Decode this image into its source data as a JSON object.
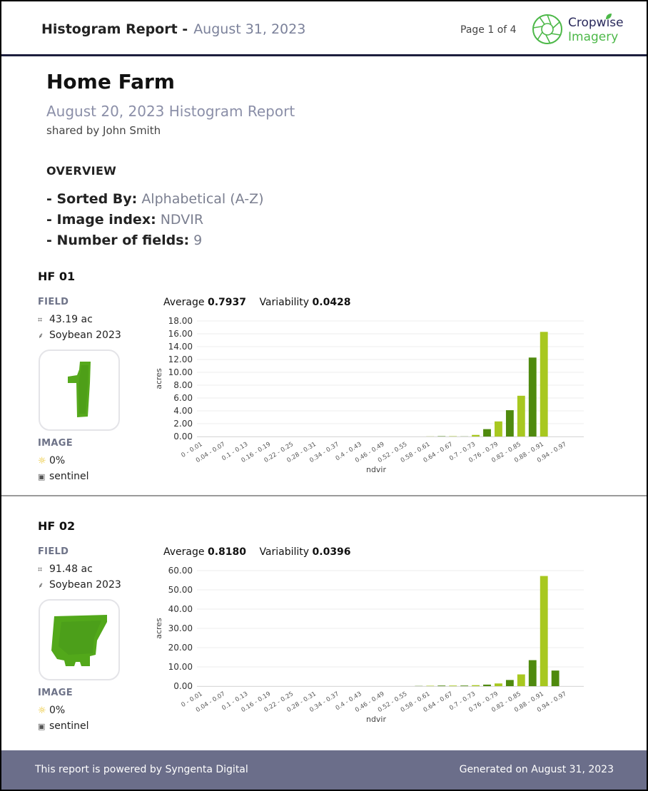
{
  "header": {
    "title": "Histogram Report -",
    "date": "August 31, 2023",
    "page": "Page 1 of 4",
    "logo_line1": "Cropwise",
    "logo_line2": "Imagery"
  },
  "farm": {
    "name": "Home Farm",
    "subtitle": "August 20, 2023 Histogram Report",
    "shared_by": "shared by John Smith"
  },
  "overview": {
    "heading": "OVERVIEW",
    "items": [
      {
        "key": "- Sorted By:",
        "value": "Alphabetical (A-Z)"
      },
      {
        "key": "- Image index:",
        "value": "NDVIR"
      },
      {
        "key": "- Number of fields:",
        "value": "9"
      }
    ]
  },
  "labels": {
    "field": "FIELD",
    "image": "IMAGE",
    "average": "Average",
    "variability": "Variability"
  },
  "fields": [
    {
      "name": "HF 01",
      "area": "43.19 ac",
      "crop": "Soybean 2023",
      "cloud": "0%",
      "source": "sentinel",
      "average": "0.7937",
      "variability": "0.0428"
    },
    {
      "name": "HF 02",
      "area": "91.48 ac",
      "crop": "Soybean 2023",
      "cloud": "0%",
      "source": "sentinel",
      "average": "0.8180",
      "variability": "0.0396"
    }
  ],
  "chart_data": [
    {
      "type": "bar",
      "xlabel": "ndvir",
      "ylabel": "acres",
      "ylim": [
        0,
        18
      ],
      "yticks": [
        "0.00",
        "2.00",
        "4.00",
        "6.00",
        "8.00",
        "10.00",
        "12.00",
        "14.00",
        "16.00",
        "18.00"
      ],
      "tick_labels": [
        "0 - 0.01",
        "0.04 - 0.07",
        "0.1 - 0.13",
        "0.16 - 0.19",
        "0.22 - 0.25",
        "0.28 - 0.31",
        "0.34 - 0.37",
        "0.4 - 0.43",
        "0.46 - 0.49",
        "0.52 - 0.55",
        "0.58 - 0.61",
        "0.64 - 0.67",
        "0.7 - 0.73",
        "0.76 - 0.79",
        "0.82 - 0.85",
        "0.88 - 0.91",
        "0.94 - 0.97"
      ],
      "values": [
        0,
        0,
        0,
        0,
        0,
        0,
        0,
        0,
        0,
        0,
        0,
        0,
        0,
        0,
        0,
        0,
        0,
        0,
        0,
        0,
        0.02,
        0.05,
        0.05,
        0.02,
        0.25,
        1.15,
        2.35,
        4.1,
        6.35,
        12.3,
        16.3,
        0,
        0,
        0
      ],
      "grid": true,
      "colors": [
        "#a8c820",
        "#4f8a0e"
      ]
    },
    {
      "type": "bar",
      "xlabel": "ndvir",
      "ylabel": "acres",
      "ylim": [
        0,
        60
      ],
      "yticks": [
        "0.00",
        "10.00",
        "20.00",
        "30.00",
        "40.00",
        "50.00",
        "60.00"
      ],
      "tick_labels": [
        "0 - 0.01",
        "0.04 - 0.07",
        "0.1 - 0.13",
        "0.16 - 0.19",
        "0.22 - 0.25",
        "0.28 - 0.31",
        "0.34 - 0.37",
        "0.4 - 0.43",
        "0.46 - 0.49",
        "0.52 - 0.55",
        "0.58 - 0.61",
        "0.64 - 0.67",
        "0.7 - 0.73",
        "0.76 - 0.79",
        "0.82 - 0.85",
        "0.88 - 0.91",
        "0.94 - 0.97"
      ],
      "values": [
        0,
        0,
        0,
        0,
        0,
        0,
        0,
        0,
        0,
        0,
        0,
        0,
        0,
        0,
        0,
        0,
        0,
        0,
        0,
        0.1,
        0.2,
        0.3,
        0.3,
        0.3,
        0.5,
        0.8,
        1.4,
        3.2,
        6.1,
        13.5,
        57.2,
        8.1,
        0,
        0
      ],
      "grid": true,
      "colors": [
        "#a8c820",
        "#4f8a0e"
      ]
    }
  ],
  "footer": {
    "left": "This report is powered by Syngenta Digital",
    "right": "Generated on August 31, 2023"
  }
}
